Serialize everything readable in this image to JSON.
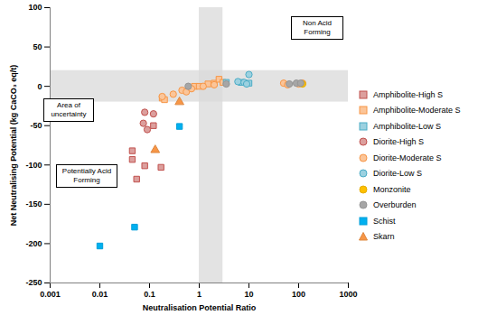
{
  "chart_data": {
    "type": "scatter",
    "xlabel": "Neutralisation Potential Ratio",
    "ylabel": "Net Neutralising Potential (kg CaCO₃ eq/t)",
    "log": "x",
    "grid": false,
    "legend": "right",
    "xlim": [
      0.001,
      1000
    ],
    "xticks": [
      0.001,
      0.01,
      0.1,
      1,
      10,
      100,
      1000
    ],
    "ylim": [
      -250,
      100
    ],
    "yticks": [
      -250,
      -200,
      -150,
      -100,
      -50,
      0,
      50,
      100
    ],
    "annotations": [
      "Non Acid Forming",
      "Area of uncertainty",
      "Potentially Acid Forming"
    ],
    "uncertainty_band": {
      "x": [
        1,
        3
      ],
      "y": [
        -20,
        20
      ]
    },
    "series": [
      {
        "name": "Amphibolite-High S",
        "color": "#c0504d",
        "marker": "square",
        "x": [
          0.045,
          0.045,
          0.055,
          0.08,
          0.12,
          0.17
        ],
        "values": [
          -82,
          -93,
          -118,
          -101,
          -50,
          -103
        ]
      },
      {
        "name": "Amphibolite-Moderate S",
        "color": "#f79646",
        "marker": "square",
        "x": [
          0.18,
          0.2,
          0.8,
          1.0,
          1.5,
          2,
          2.5,
          3
        ],
        "values": [
          -15,
          -17,
          0,
          0,
          3,
          4,
          9,
          5
        ]
      },
      {
        "name": "Amphibolite-Low S",
        "color": "#4bacc6",
        "marker": "square",
        "x": [
          3.5,
          7,
          10
        ],
        "values": [
          5,
          5,
          4
        ]
      },
      {
        "name": "Diorite-High S",
        "color": "#c0504d",
        "marker": "circle",
        "x": [
          0.08,
          0.075,
          0.09,
          0.12
        ],
        "values": [
          -33,
          -47,
          -55,
          -35
        ]
      },
      {
        "name": "Diorite-Moderate S",
        "color": "#f79646",
        "marker": "circle",
        "x": [
          0.18,
          0.3,
          0.45,
          0.55,
          0.7,
          1.2,
          2,
          50,
          60,
          100,
          120
        ],
        "values": [
          -13,
          -10,
          -5,
          -7,
          -3,
          0,
          2,
          4,
          2,
          3,
          4
        ]
      },
      {
        "name": "Diorite-Low S",
        "color": "#4bacc6",
        "marker": "circle",
        "x": [
          6,
          8,
          9,
          10
        ],
        "values": [
          6,
          5,
          3,
          15
        ]
      },
      {
        "name": "Monzonite",
        "color": "#ffc000",
        "marker": "solid circle",
        "x": [
          120
        ],
        "values": [
          3
        ]
      },
      {
        "name": "Overburden",
        "color": "#a6a6a6",
        "marker": "solid circle",
        "x": [
          0.6,
          3.5,
          65,
          90,
          110
        ],
        "values": [
          0,
          3,
          3,
          4,
          4
        ]
      },
      {
        "name": "Schist",
        "color": "#00b0f0",
        "marker": "solid square",
        "x": [
          0.01,
          0.05,
          0.4
        ],
        "values": [
          -203,
          -179,
          -51
        ]
      },
      {
        "name": "Skarn",
        "color": "#f79646",
        "marker": "solid triangle",
        "x": [
          0.13,
          0.4
        ],
        "values": [
          -81,
          -20
        ]
      }
    ]
  }
}
